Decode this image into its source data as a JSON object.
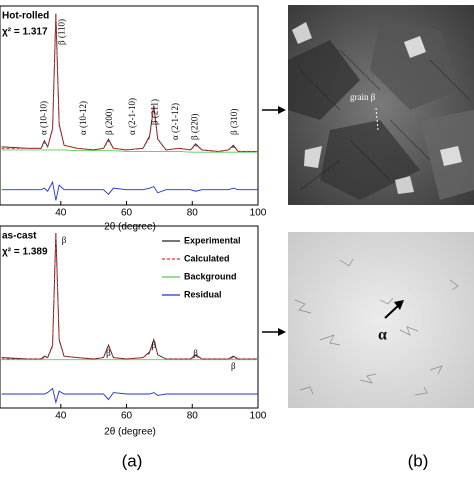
{
  "chart_data": [
    {
      "type": "line",
      "sample_label": "Hot-rolled",
      "fit_label": "χ² = 1.317",
      "x_label": "2θ (degree)",
      "xlim": [
        21.5,
        100
      ],
      "xticks": [
        40,
        60,
        80,
        100
      ],
      "ylim": [
        -25,
        105
      ],
      "annotations": [
        "α (10-10)",
        "β (110)",
        "α (10-12)",
        "β (200)",
        "α (2-1-10)",
        "β (211)",
        "α (2-1-12)",
        "β (220)",
        "β (310)"
      ],
      "x": [
        22,
        30,
        34,
        35,
        36,
        37.5,
        38.5,
        39.5,
        41,
        45,
        50,
        53,
        54.5,
        56,
        60,
        65,
        67,
        68.3,
        69.5,
        72,
        76,
        79.5,
        81,
        83,
        88,
        91,
        92.5,
        94,
        100
      ],
      "series": [
        {
          "color": "#222222",
          "values": [
            13,
            12,
            12,
            17,
            13,
            25,
            100,
            28,
            14,
            12,
            11,
            12,
            18,
            12,
            11,
            12,
            20,
            40,
            18,
            11,
            12,
            11,
            15,
            11,
            10,
            11,
            14,
            10,
            10
          ]
        },
        {
          "color": "#e03030",
          "dash": true,
          "values": [
            12,
            12,
            12,
            16,
            13,
            24,
            98,
            27,
            14,
            12,
            11,
            12,
            17,
            12,
            11,
            12,
            19,
            39,
            18,
            11,
            12,
            11,
            14,
            11,
            10,
            11,
            13,
            10,
            10
          ]
        },
        {
          "color": "#5cc85c",
          "values": [
            11,
            11,
            11,
            11,
            11,
            11,
            11,
            11,
            11,
            10.5,
            10.5,
            10.5,
            10.5,
            10.5,
            10,
            10,
            10,
            10,
            10,
            10,
            10,
            9.5,
            9.5,
            9.5,
            9.5,
            9.5,
            9.5,
            9.5,
            9.5
          ]
        },
        {
          "color": "#2233cc",
          "values": [
            -15,
            -15,
            -15,
            -14,
            -16,
            -10,
            -22,
            -12,
            -15,
            -15,
            -15,
            -15,
            -18,
            -14,
            -15,
            -15,
            -14,
            -13,
            -17,
            -15,
            -15,
            -15,
            -16,
            -15,
            -15,
            -15,
            -14,
            -15,
            -15
          ]
        }
      ]
    },
    {
      "type": "line",
      "sample_label": "as-cast",
      "fit_label": "χ² = 1.389",
      "x_label": "2θ (degree)",
      "xlim": [
        21.5,
        100
      ],
      "xticks": [
        40,
        60,
        80,
        100
      ],
      "ylim": [
        -25,
        105
      ],
      "legend": "top-right",
      "annotations": [
        "β",
        "β",
        "β",
        "β",
        "β"
      ],
      "x": [
        22,
        30,
        34,
        35,
        36,
        37.5,
        38.5,
        39.5,
        41,
        45,
        50,
        53,
        54.5,
        56,
        60,
        65,
        67,
        68.3,
        69.5,
        72,
        76,
        79.5,
        81,
        83,
        88,
        91,
        92.5,
        94,
        100
      ],
      "series": [
        {
          "name": "Experimental",
          "color": "#222222",
          "values": [
            11,
            10,
            10,
            12,
            11,
            20,
            100,
            24,
            12,
            11,
            10,
            11,
            20,
            11,
            10,
            11,
            15,
            24,
            13,
            10,
            10,
            10,
            13,
            10,
            10,
            10,
            12,
            10,
            10
          ]
        },
        {
          "name": "Calculated",
          "color": "#e03030",
          "dash": true,
          "values": [
            10,
            10,
            10,
            11,
            11,
            19,
            98,
            23,
            12,
            11,
            10,
            11,
            19,
            11,
            10,
            11,
            14,
            23,
            13,
            10,
            10,
            10,
            12,
            10,
            10,
            10,
            11,
            10,
            10
          ]
        },
        {
          "name": "Background",
          "color": "#5cc85c",
          "values": [
            9.5,
            9.5,
            9.5,
            9.5,
            9.5,
            9.5,
            9.5,
            9.5,
            9.5,
            9.5,
            9.5,
            9.5,
            9.5,
            9.5,
            9.5,
            9.5,
            9.5,
            9.5,
            9.5,
            9.5,
            9.5,
            9.5,
            9.5,
            9.5,
            9.5,
            9.5,
            9.5,
            9.5,
            9.5
          ]
        },
        {
          "name": "Residual",
          "color": "#2233cc",
          "values": [
            -15,
            -15,
            -15,
            -15,
            -14,
            -11,
            -21,
            -13,
            -15,
            -15,
            -15,
            -15,
            -19,
            -14,
            -15,
            -15,
            -15,
            -14,
            -16,
            -15,
            -15,
            -15,
            -15,
            -15,
            -15,
            -15,
            -15,
            -15,
            -15
          ]
        }
      ]
    }
  ],
  "panel_labels": [
    "(a)",
    "(b)"
  ],
  "micrograph_labels": [
    "grain β",
    "α"
  ]
}
